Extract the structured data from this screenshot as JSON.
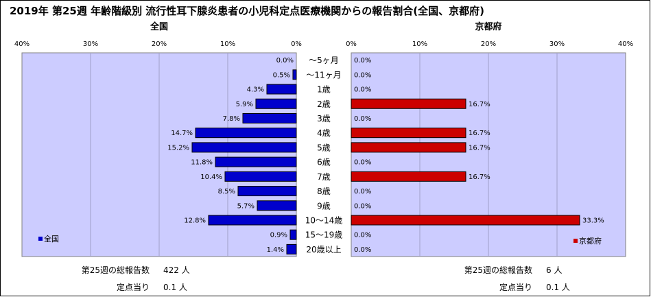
{
  "chart_data": {
    "type": "bar",
    "title": "2019年 第25週 年齢階級別 流行性耳下腺炎患者の小児科定点医療機関からの報告割合(全国、京都府)",
    "categories": [
      "～5ヶ月",
      "～11ヶ月",
      "1歳",
      "2歳",
      "3歳",
      "4歳",
      "5歳",
      "6歳",
      "7歳",
      "8歳",
      "9歳",
      "10～14歳",
      "15～19歳",
      "20歳以上"
    ],
    "xlim": [
      0,
      40
    ],
    "ticks": [
      "40%",
      "30%",
      "20%",
      "10%",
      "0%"
    ],
    "ticks_right": [
      "0%",
      "10%",
      "20%",
      "30%",
      "40%"
    ],
    "grid": true,
    "series": [
      {
        "name": "全国",
        "panel_title": "全国",
        "color": "#0000cc",
        "values": [
          0.0,
          0.5,
          4.3,
          5.9,
          7.8,
          14.7,
          15.2,
          11.8,
          10.4,
          8.5,
          5.7,
          12.8,
          0.9,
          1.4
        ],
        "labels": [
          "0.0%",
          "0.5%",
          "4.3%",
          "5.9%",
          "7.8%",
          "14.7%",
          "15.2%",
          "11.8%",
          "10.4%",
          "8.5%",
          "5.7%",
          "12.8%",
          "0.9%",
          "1.4%"
        ]
      },
      {
        "name": "京都府",
        "panel_title": "京都府",
        "color": "#cc0000",
        "values": [
          0.0,
          0.0,
          0.0,
          16.7,
          0.0,
          16.7,
          16.7,
          0.0,
          16.7,
          0.0,
          0.0,
          33.3,
          0.0,
          0.0
        ],
        "labels": [
          "0.0%",
          "0.0%",
          "0.0%",
          "16.7%",
          "0.0%",
          "16.7%",
          "16.7%",
          "0.0%",
          "16.7%",
          "0.0%",
          "0.0%",
          "33.3%",
          "0.0%",
          "0.0%"
        ]
      }
    ],
    "legend_placement": [
      "bottom-left",
      "bottom-right"
    ],
    "plot_bg": "#ccccff"
  },
  "footer": {
    "left": {
      "total_label": "第25週の総報告数",
      "total_value": "422 人",
      "per_label": "定点当り",
      "per_value": "0.1 人"
    },
    "right": {
      "total_label": "第25週の総報告数",
      "total_value": "6 人",
      "per_label": "定点当り",
      "per_value": "0.1 人"
    }
  }
}
